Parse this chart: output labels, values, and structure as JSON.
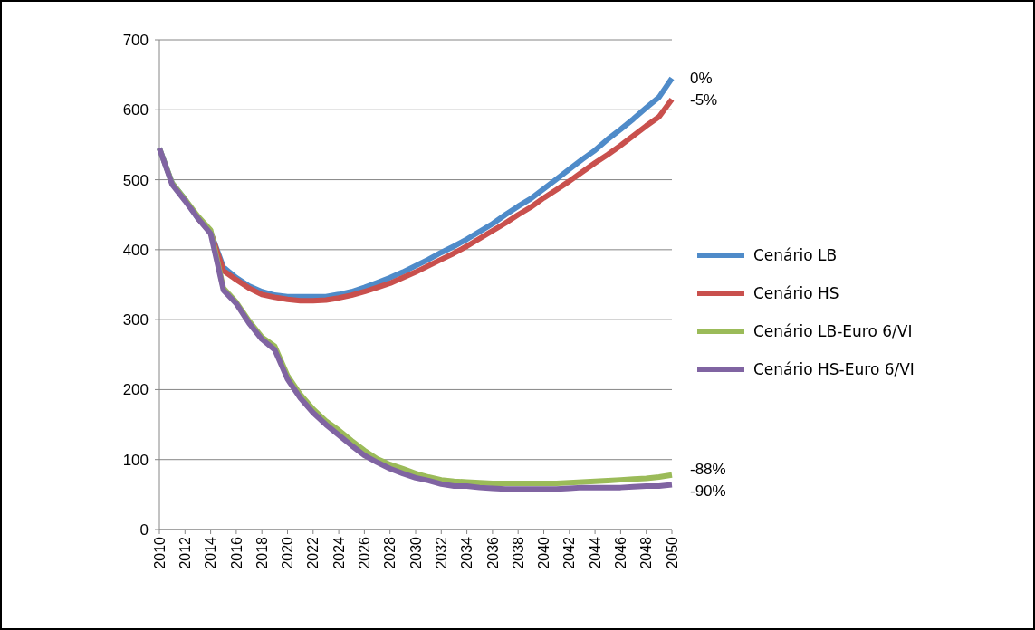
{
  "chart_data": {
    "type": "line",
    "x": [
      2010,
      2011,
      2012,
      2013,
      2014,
      2015,
      2016,
      2017,
      2018,
      2019,
      2020,
      2021,
      2022,
      2023,
      2024,
      2025,
      2026,
      2027,
      2028,
      2029,
      2030,
      2031,
      2032,
      2033,
      2034,
      2035,
      2036,
      2037,
      2038,
      2039,
      2040,
      2041,
      2042,
      2043,
      2044,
      2045,
      2046,
      2047,
      2048,
      2049,
      2050
    ],
    "series": [
      {
        "name": "Cenário LB",
        "color": "#4f8bc9",
        "values": [
          545,
          495,
          472,
          445,
          425,
          375,
          360,
          348,
          340,
          335,
          333,
          333,
          333,
          333,
          336,
          340,
          346,
          353,
          360,
          368,
          377,
          386,
          396,
          405,
          415,
          426,
          437,
          450,
          462,
          473,
          487,
          501,
          515,
          529,
          542,
          558,
          572,
          587,
          603,
          618,
          645
        ]
      },
      {
        "name": "Cenário HS",
        "color": "#c9504d",
        "values": [
          null,
          null,
          null,
          445,
          425,
          370,
          357,
          345,
          336,
          332,
          329,
          327,
          327,
          328,
          331,
          335,
          340,
          346,
          352,
          360,
          368,
          377,
          386,
          395,
          405,
          416,
          427,
          438,
          450,
          461,
          474,
          486,
          498,
          511,
          524,
          536,
          549,
          563,
          577,
          590,
          615
        ]
      },
      {
        "name": "Cenário LB-Euro 6/VI",
        "color": "#9bbb59",
        "values": [
          545,
          495,
          472,
          448,
          428,
          345,
          325,
          298,
          275,
          262,
          220,
          193,
          172,
          155,
          142,
          127,
          113,
          101,
          93,
          87,
          80,
          75,
          71,
          69,
          68,
          67,
          66,
          66,
          66,
          66,
          66,
          66,
          67,
          68,
          69,
          70,
          71,
          72,
          73,
          75,
          78
        ]
      },
      {
        "name": "Cenário HS-Euro 6/VI",
        "color": "#8064a2",
        "values": [
          545,
          493,
          470,
          445,
          423,
          342,
          323,
          295,
          272,
          257,
          215,
          188,
          167,
          150,
          135,
          120,
          106,
          96,
          87,
          80,
          74,
          70,
          65,
          62,
          62,
          60,
          59,
          58,
          58,
          58,
          58,
          58,
          59,
          60,
          60,
          60,
          60,
          61,
          62,
          62,
          64
        ]
      }
    ],
    "xlim": [
      2010,
      2050
    ],
    "xticks": [
      2010,
      2012,
      2014,
      2016,
      2018,
      2020,
      2022,
      2024,
      2026,
      2028,
      2030,
      2032,
      2034,
      2036,
      2038,
      2040,
      2042,
      2044,
      2046,
      2048,
      2050
    ],
    "ylim": [
      0,
      700
    ],
    "yticks": [
      0,
      100,
      200,
      300,
      400,
      500,
      600,
      700
    ],
    "grid": "y",
    "legend": "right",
    "marker": "none",
    "line_style": "solid",
    "annotations": [
      "0%",
      "-5%",
      "-88%",
      "-90%"
    ]
  }
}
